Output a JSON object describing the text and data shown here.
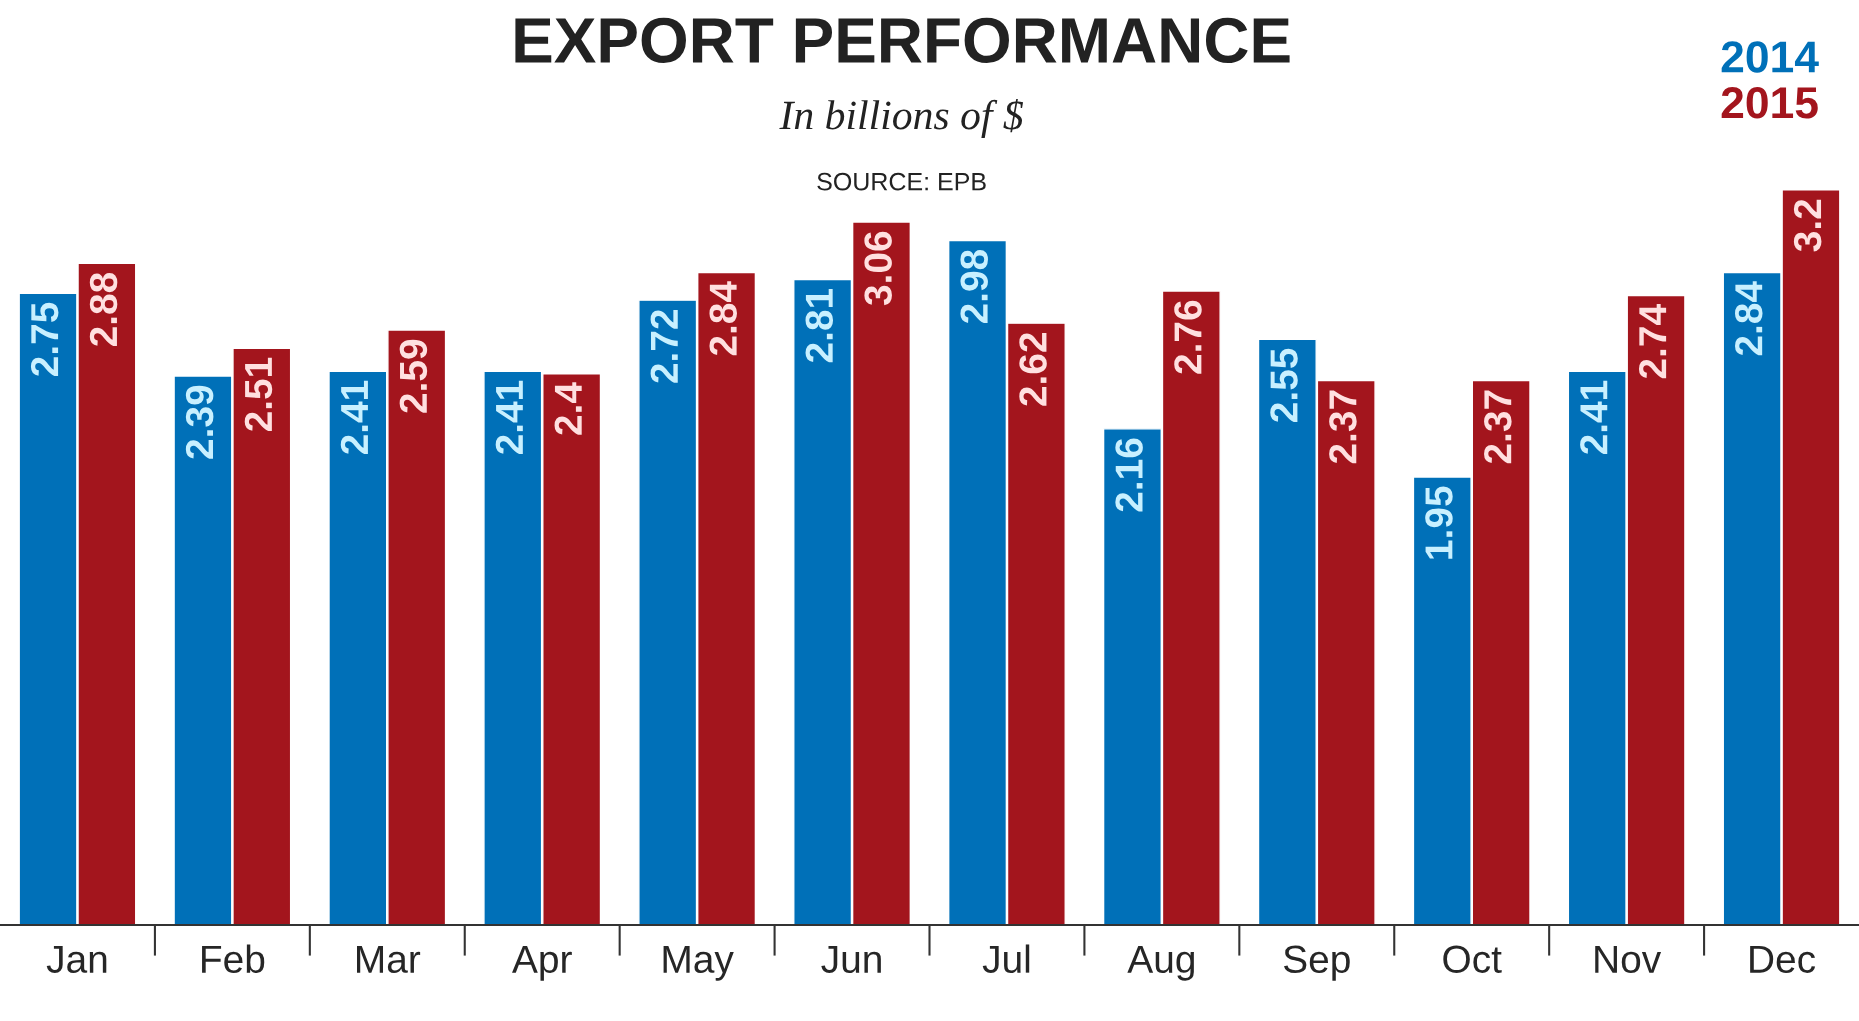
{
  "chart_data": {
    "type": "bar",
    "title": "EXPORT PERFORMANCE",
    "subtitle": "In billions of $",
    "annotations": [
      "SOURCE: EPB"
    ],
    "categories": [
      "Jan",
      "Feb",
      "Mar",
      "Apr",
      "May",
      "Jun",
      "Jul",
      "Aug",
      "Sep",
      "Oct",
      "Nov",
      "Dec"
    ],
    "series": [
      {
        "name": "2014",
        "color": "#0070b8",
        "values": [
          2.75,
          2.39,
          2.41,
          2.41,
          2.72,
          2.81,
          2.98,
          2.16,
          2.55,
          1.95,
          2.41,
          2.84
        ]
      },
      {
        "name": "2015",
        "color": "#a3151d",
        "values": [
          2.88,
          2.51,
          2.59,
          2.4,
          2.84,
          3.06,
          2.62,
          2.76,
          2.37,
          2.37,
          2.74,
          3.2
        ]
      }
    ],
    "data_labels": true,
    "legend": "top right",
    "grid": false
  }
}
